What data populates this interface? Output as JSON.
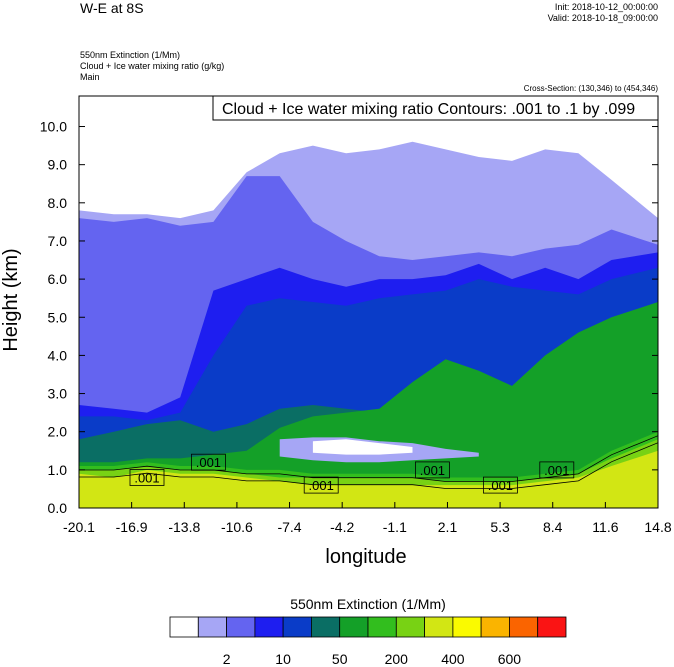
{
  "header": {
    "title": "W-E at 8S",
    "init": "Init: 2018-10-12_00:00:00",
    "valid": "Valid: 2018-10-18_09:00:00",
    "field1": "550nm Extinction   (1/Mm)",
    "field2": "Cloud + Ice water mixing ratio   (g/kg)",
    "field3": "Main",
    "cross_section": "Cross-Section: (130,346) to (454,346)"
  },
  "colors": {
    "fill_levels": [
      "#ffffff",
      "#a6a6f5",
      "#6464f0",
      "#1e1ef0",
      "#0a3cc8",
      "#0a6e64",
      "#14a028",
      "#32be1e",
      "#78d214",
      "#d2e614",
      "#fafa00",
      "#fab400",
      "#fa6400",
      "#fa1414"
    ]
  },
  "chart_data": {
    "type": "contour",
    "title": "Cloud + Ice water mixing ratio Contours: .001 to .1 by .099",
    "xlabel": "longitude",
    "ylabel": "Height (km)",
    "xlim": [
      -20.1,
      14.8
    ],
    "ylim": [
      0.0,
      10.8
    ],
    "x_ticks": [
      "-20.1",
      "-16.9",
      "-13.8",
      "-10.6",
      "-7.4",
      "-4.2",
      "-1.1",
      "2.1",
      "5.3",
      "8.4",
      "11.6",
      "14.8"
    ],
    "y_ticks": [
      "0.0",
      "1.0",
      "2.0",
      "3.0",
      "4.0",
      "5.0",
      "6.0",
      "7.0",
      "8.0",
      "9.0",
      "10.0"
    ],
    "x": [
      -20.1,
      -18,
      -16,
      -14,
      -12,
      -10,
      -8,
      -6,
      -4,
      -2,
      0,
      2,
      4,
      6,
      8,
      10,
      12,
      14.8
    ],
    "layers": [
      {
        "level": "2",
        "top": [
          7.8,
          7.7,
          7.7,
          7.6,
          7.8,
          8.8,
          9.3,
          9.5,
          9.3,
          9.4,
          9.6,
          9.4,
          9.2,
          9.1,
          9.4,
          9.3,
          8.6,
          7.6
        ]
      },
      {
        "level": "5",
        "top": [
          7.6,
          7.5,
          7.6,
          7.4,
          7.5,
          8.7,
          8.7,
          7.5,
          7.0,
          6.6,
          6.5,
          6.6,
          6.7,
          6.6,
          6.8,
          6.9,
          7.3,
          6.9
        ]
      },
      {
        "level": "10",
        "top": [
          2.7,
          2.6,
          2.5,
          2.9,
          5.7,
          6.0,
          6.3,
          6.0,
          5.8,
          6.0,
          6.0,
          6.1,
          6.4,
          6.0,
          6.3,
          6.0,
          6.5,
          6.7
        ]
      },
      {
        "level": "20",
        "top": [
          2.4,
          2.4,
          2.3,
          2.5,
          4.0,
          5.3,
          5.5,
          5.4,
          5.3,
          5.5,
          5.6,
          5.7,
          6.0,
          5.8,
          5.7,
          5.6,
          6.0,
          6.3
        ]
      },
      {
        "level": "50",
        "top": [
          1.8,
          2.0,
          2.2,
          2.3,
          2.0,
          2.2,
          2.6,
          2.7,
          2.6,
          2.5,
          2.7,
          2.8,
          2.9,
          3.2,
          3.0,
          2.8,
          3.2,
          3.2
        ]
      },
      {
        "level": "100",
        "top": [
          1.2,
          1.2,
          1.3,
          1.3,
          1.4,
          1.5,
          2.1,
          2.4,
          2.5,
          2.6,
          3.3,
          3.9,
          3.6,
          3.2,
          4.0,
          4.6,
          5.0,
          5.4
        ]
      },
      {
        "level": "200",
        "top": [
          1.1,
          1.1,
          1.2,
          1.1,
          1.1,
          1.0,
          1.0,
          0.9,
          0.9,
          0.9,
          0.9,
          0.8,
          0.8,
          0.8,
          0.9,
          1.0,
          1.5,
          2.0
        ]
      },
      {
        "level": "300",
        "top": [
          1.0,
          1.0,
          1.1,
          1.0,
          1.0,
          0.9,
          0.8,
          0.8,
          0.8,
          0.8,
          0.8,
          0.7,
          0.7,
          0.7,
          0.8,
          0.9,
          1.3,
          1.8
        ]
      },
      {
        "level": "400",
        "top": [
          0.9,
          0.8,
          1.0,
          0.9,
          0.9,
          0.8,
          0.7,
          0.6,
          0.6,
          0.6,
          0.6,
          0.6,
          0.6,
          0.6,
          0.7,
          0.8,
          1.1,
          1.5
        ]
      }
    ],
    "light_band": {
      "x": [
        -8,
        -6,
        -4,
        -2,
        0,
        2,
        4
      ],
      "top": [
        1.8,
        1.85,
        1.85,
        1.75,
        1.7,
        1.55,
        1.45
      ],
      "bottom": [
        1.35,
        1.25,
        1.2,
        1.2,
        1.25,
        1.3,
        1.35
      ]
    },
    "inner_white": {
      "x": [
        -6,
        -4,
        -2,
        0
      ],
      "top": [
        1.75,
        1.8,
        1.7,
        1.6
      ],
      "bottom": [
        1.45,
        1.4,
        1.4,
        1.45
      ]
    },
    "contour_labels": [
      {
        "text": ".001",
        "x": -12.3,
        "y": 1.2
      },
      {
        "text": ".001",
        "x": -16.0,
        "y": 0.8
      },
      {
        "text": ".001",
        "x": -5.5,
        "y": 0.6
      },
      {
        "text": ".001",
        "x": 1.2,
        "y": 1.0
      },
      {
        "text": ".001",
        "x": 5.3,
        "y": 0.6
      },
      {
        "text": ".001",
        "x": 8.7,
        "y": 1.0
      }
    ],
    "colorbar": {
      "title": "550nm Extinction  (1/Mm)",
      "labels": [
        "2",
        "10",
        "50",
        "200",
        "400",
        "600"
      ]
    }
  }
}
